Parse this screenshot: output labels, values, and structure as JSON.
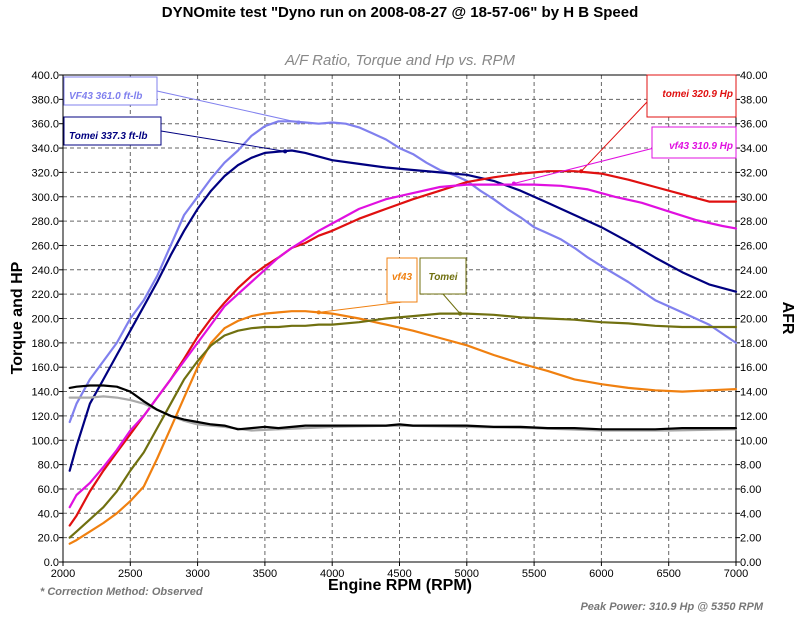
{
  "page": {
    "title": "DYNOmite test \"Dyno run on 2008-08-27 @ 18-57-06\" by H B Speed",
    "subtitle": "A/F Ratio, Torque and Hp vs. RPM",
    "footer_left": "* Correction Method: Observed",
    "footer_right": "Peak Power: 310.9 Hp @ 5350 RPM"
  },
  "chart_data": {
    "type": "line",
    "title": "A/F Ratio, Torque and Hp vs. RPM",
    "xlabel": "Engine RPM (RPM)",
    "ylabel": "Torque and HP",
    "y2label": "AFR",
    "xlim": [
      2000,
      7000
    ],
    "ylim": [
      0,
      400
    ],
    "y2lim": [
      0,
      40
    ],
    "grid": true,
    "x_ticks": [
      "2000",
      "2500",
      "3000",
      "3500",
      "4000",
      "4500",
      "5000",
      "5500",
      "6000",
      "6500",
      "7000"
    ],
    "y_ticks": [
      "0.0",
      "20.0",
      "40.0",
      "60.0",
      "80.0",
      "100.0",
      "120.0",
      "140.0",
      "160.0",
      "180.0",
      "200.0",
      "220.0",
      "240.0",
      "260.0",
      "280.0",
      "300.0",
      "320.0",
      "340.0",
      "360.0",
      "380.0",
      "400.0"
    ],
    "y2_ticks": [
      "0.00",
      "2.00",
      "4.00",
      "6.00",
      "8.00",
      "10.00",
      "12.00",
      "14.00",
      "16.00",
      "18.00",
      "20.00",
      "22.00",
      "24.00",
      "26.00",
      "28.00",
      "30.00",
      "32.00",
      "34.00",
      "36.00",
      "38.00",
      "40.00"
    ],
    "series": [
      {
        "color": "#8080ee",
        "axis": "left",
        "x": [
          2050,
          2100,
          2200,
          2300,
          2400,
          2500,
          2600,
          2700,
          2800,
          2900,
          3000,
          3100,
          3200,
          3300,
          3400,
          3500,
          3600,
          3700,
          3800,
          3900,
          4000,
          4100,
          4200,
          4300,
          4400,
          4500,
          4600,
          4700,
          4800,
          4900,
          5000,
          5100,
          5200,
          5300,
          5400,
          5500,
          5600,
          5700,
          5800,
          5900,
          6000,
          6200,
          6400,
          6600,
          6800,
          7000
        ],
        "y": [
          115,
          130,
          150,
          165,
          180,
          200,
          215,
          235,
          260,
          285,
          300,
          315,
          328,
          338,
          350,
          358,
          362,
          362,
          361,
          360,
          361,
          360,
          357,
          352,
          347,
          340,
          335,
          328,
          322,
          318,
          313,
          305,
          298,
          290,
          283,
          275,
          270,
          265,
          258,
          250,
          243,
          230,
          215,
          205,
          195,
          180
        ]
      },
      {
        "color": "#000080",
        "axis": "left",
        "x": [
          2050,
          2100,
          2200,
          2300,
          2400,
          2500,
          2600,
          2700,
          2800,
          2900,
          3000,
          3100,
          3200,
          3300,
          3400,
          3500,
          3600,
          3700,
          3800,
          3900,
          4000,
          4200,
          4400,
          4600,
          4800,
          5000,
          5200,
          5400,
          5600,
          5800,
          6000,
          6200,
          6400,
          6600,
          6800,
          7000
        ],
        "y": [
          75,
          95,
          130,
          150,
          170,
          190,
          210,
          230,
          252,
          272,
          290,
          305,
          317,
          326,
          332,
          336,
          337,
          338,
          336,
          333,
          330,
          327,
          324,
          322,
          320,
          318,
          313,
          305,
          295,
          285,
          275,
          263,
          250,
          238,
          228,
          222
        ]
      },
      {
        "color": "#e01010",
        "axis": "left",
        "x": [
          2050,
          2100,
          2200,
          2300,
          2400,
          2500,
          2600,
          2700,
          2800,
          2900,
          3000,
          3100,
          3200,
          3300,
          3400,
          3500,
          3600,
          3700,
          3800,
          3900,
          4000,
          4200,
          4400,
          4600,
          4800,
          5000,
          5200,
          5400,
          5600,
          5800,
          5900,
          6000,
          6200,
          6400,
          6600,
          6800,
          7000
        ],
        "y": [
          30,
          38,
          58,
          75,
          90,
          105,
          120,
          135,
          150,
          167,
          185,
          200,
          213,
          225,
          235,
          243,
          250,
          258,
          262,
          268,
          272,
          282,
          290,
          298,
          305,
          312,
          316,
          319,
          321,
          321,
          320,
          319,
          314,
          308,
          302,
          296,
          296
        ]
      },
      {
        "color": "#e010e0",
        "axis": "left",
        "x": [
          2050,
          2100,
          2200,
          2300,
          2400,
          2500,
          2600,
          2700,
          2800,
          2900,
          3000,
          3100,
          3200,
          3300,
          3400,
          3500,
          3600,
          3700,
          3800,
          3900,
          4000,
          4200,
          4400,
          4600,
          4800,
          5000,
          5200,
          5350,
          5500,
          5700,
          5900,
          6100,
          6300,
          6500,
          6700,
          6900,
          7000
        ],
        "y": [
          45,
          55,
          65,
          78,
          92,
          108,
          120,
          135,
          150,
          165,
          180,
          195,
          210,
          220,
          230,
          240,
          250,
          258,
          265,
          272,
          278,
          290,
          298,
          303,
          308,
          310,
          310,
          310,
          310,
          309,
          306,
          300,
          295,
          288,
          281,
          276,
          274
        ]
      },
      {
        "color": "#f08010",
        "axis": "left",
        "x": [
          2050,
          2100,
          2200,
          2300,
          2400,
          2500,
          2600,
          2700,
          2800,
          2900,
          3000,
          3100,
          3200,
          3300,
          3400,
          3500,
          3600,
          3700,
          3800,
          3900,
          4000,
          4200,
          4400,
          4600,
          4800,
          5000,
          5200,
          5400,
          5600,
          5800,
          6000,
          6200,
          6400,
          6600,
          6800,
          7000
        ],
        "y": [
          15,
          18,
          25,
          32,
          40,
          50,
          62,
          85,
          110,
          135,
          160,
          180,
          192,
          198,
          202,
          204,
          205,
          206,
          206,
          205,
          204,
          200,
          195,
          190,
          184,
          178,
          170,
          163,
          157,
          150,
          146,
          143,
          141,
          140,
          141,
          142
        ]
      },
      {
        "color": "#707010",
        "axis": "left",
        "x": [
          2050,
          2100,
          2200,
          2300,
          2400,
          2500,
          2600,
          2700,
          2800,
          2900,
          3000,
          3100,
          3200,
          3300,
          3400,
          3500,
          3600,
          3700,
          3800,
          3900,
          4000,
          4200,
          4400,
          4600,
          4800,
          5000,
          5200,
          5400,
          5600,
          5800,
          6000,
          6200,
          6400,
          6600,
          6800,
          7000
        ],
        "y": [
          20,
          25,
          35,
          45,
          58,
          75,
          90,
          110,
          130,
          150,
          165,
          178,
          186,
          190,
          192,
          193,
          193,
          194,
          194,
          195,
          195,
          197,
          200,
          202,
          204,
          204,
          203,
          201,
          200,
          199,
          197,
          196,
          194,
          193,
          193,
          193
        ]
      },
      {
        "color": "#aaaaaa",
        "axis": "right",
        "x": [
          2050,
          2100,
          2200,
          2300,
          2400,
          2500,
          2600,
          2700,
          2800,
          2900,
          3000,
          3200,
          3400,
          3600,
          3800,
          4000,
          4500,
          5000,
          5500,
          6000,
          6500,
          7000
        ],
        "y": [
          13.5,
          13.5,
          13.5,
          13.6,
          13.5,
          13.3,
          13.0,
          12.5,
          12.0,
          11.6,
          11.3,
          11.1,
          10.8,
          10.9,
          11.0,
          11.1,
          11.2,
          11.1,
          11.0,
          10.8,
          10.8,
          10.9
        ]
      },
      {
        "color": "#000000",
        "axis": "right",
        "x": [
          2050,
          2100,
          2200,
          2300,
          2400,
          2500,
          2600,
          2700,
          2800,
          2900,
          3000,
          3100,
          3200,
          3300,
          3400,
          3500,
          3600,
          3700,
          3800,
          4000,
          4200,
          4400,
          4500,
          4600,
          4800,
          5000,
          5200,
          5400,
          5600,
          5800,
          6000,
          6200,
          6400,
          6600,
          6800,
          7000
        ],
        "y": [
          14.3,
          14.4,
          14.5,
          14.5,
          14.4,
          14.0,
          13.2,
          12.5,
          12.0,
          11.7,
          11.5,
          11.3,
          11.2,
          10.9,
          11.0,
          11.1,
          11.0,
          11.1,
          11.2,
          11.2,
          11.2,
          11.2,
          11.3,
          11.2,
          11.2,
          11.2,
          11.1,
          11.1,
          11.0,
          11.0,
          10.9,
          10.9,
          10.9,
          11.0,
          11.0,
          11.0
        ]
      }
    ],
    "annotations": [
      {
        "text": "VF43 361.0 ft-lb",
        "color": "#8080ee",
        "x": 3750,
        "y": 361
      },
      {
        "text": "Tomei 337.3 ft-lb",
        "color": "#000080",
        "x": 3650,
        "y": 337.3
      },
      {
        "text": "tomei 320.9 Hp",
        "color": "#e01010",
        "x": 5850,
        "y": 320.9
      },
      {
        "text": "vf43 310.9 Hp",
        "color": "#e010e0",
        "x": 5350,
        "y": 310.9
      },
      {
        "text": "vf43",
        "color": "#f08010",
        "x": 3900,
        "y": 205
      },
      {
        "text": "Tomei",
        "color": "#707010",
        "x": 4950,
        "y": 204
      }
    ]
  }
}
